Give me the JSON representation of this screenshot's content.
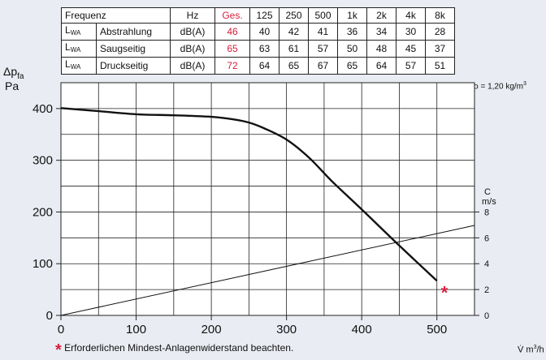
{
  "table": {
    "header": [
      "Frequenz",
      "Hz",
      "Ges.",
      "125",
      "250",
      "500",
      "1k",
      "2k",
      "4k",
      "8k"
    ],
    "rows": [
      {
        "sym": "L",
        "sub": "WA",
        "label": "Abstrahlung",
        "unit": "dB(A)",
        "ges": "46",
        "values": [
          "40",
          "42",
          "41",
          "36",
          "34",
          "30",
          "28"
        ]
      },
      {
        "sym": "L",
        "sub": "WA",
        "label": "Saugseitig",
        "unit": "dB(A)",
        "ges": "65",
        "values": [
          "63",
          "61",
          "57",
          "50",
          "48",
          "45",
          "37"
        ]
      },
      {
        "sym": "L",
        "sub": "WA",
        "label": "Druckseitig",
        "unit": "dB(A)",
        "ges": "72",
        "values": [
          "64",
          "65",
          "67",
          "65",
          "64",
          "57",
          "51"
        ]
      }
    ],
    "ges_color": "#d81e3c"
  },
  "chart_data": {
    "type": "line",
    "ylabel_main": "Δp",
    "ylabel_sub": "fa",
    "ylabel_unit": "Pa",
    "density_note": "ρ = 1,20 kg/m",
    "density_sup": "3",
    "xlabel": "V̇ m",
    "xlabel_sup": "3",
    "xlabel_tail": "/h",
    "xlim": [
      0,
      550
    ],
    "ylim": [
      0,
      450
    ],
    "x_ticks": [
      0,
      100,
      200,
      300,
      400,
      500
    ],
    "y_ticks": [
      0,
      100,
      200,
      300,
      400
    ],
    "grid": true,
    "right_axis": {
      "label": "C",
      "unit": "m/s",
      "ticks": [
        0,
        2,
        4,
        6,
        8
      ],
      "per_unit_pa": 25
    },
    "series": [
      {
        "role": "fan-curve",
        "x": [
          0,
          50,
          100,
          150,
          200,
          230,
          250,
          270,
          300,
          330,
          360,
          400,
          450,
          500
        ],
        "y": [
          401,
          395,
          389,
          387,
          384,
          379,
          373,
          362,
          340,
          305,
          260,
          205,
          135,
          67
        ]
      },
      {
        "role": "velocity-line",
        "x": [
          0,
          550
        ],
        "y": [
          0,
          174
        ]
      }
    ],
    "marker": {
      "symbol": "*",
      "x": 510,
      "y": 48,
      "color": "#d81e3c"
    },
    "footnote_symbol": "*",
    "footnote": "Erforderlichen Mindest-Anlagenwiderstand beachten."
  }
}
